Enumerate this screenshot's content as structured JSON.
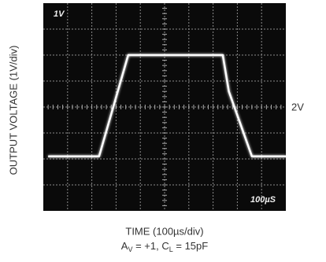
{
  "chart_data": {
    "type": "line",
    "scope_labels": {
      "volts_per_div": "1V",
      "time_per_div": "100µS",
      "reference": "2V"
    },
    "y_label": "OUTPUT VOLTAGE (1V/div)",
    "x_label": "TIME (100µs/div)",
    "condition": [
      "A",
      "V",
      " = +1, C",
      "L",
      " = 15pF"
    ],
    "x": [
      20,
      230,
      350,
      740,
      765,
      860,
      1000
    ],
    "series": [
      {
        "color": "#ffffff",
        "values": [
          0.1,
          0.1,
          4.0,
          4.0,
          2.6,
          0.1,
          0.1
        ]
      }
    ],
    "xlim": [
      0,
      1000
    ],
    "ylim": [
      -2,
      6
    ],
    "grid": true
  }
}
